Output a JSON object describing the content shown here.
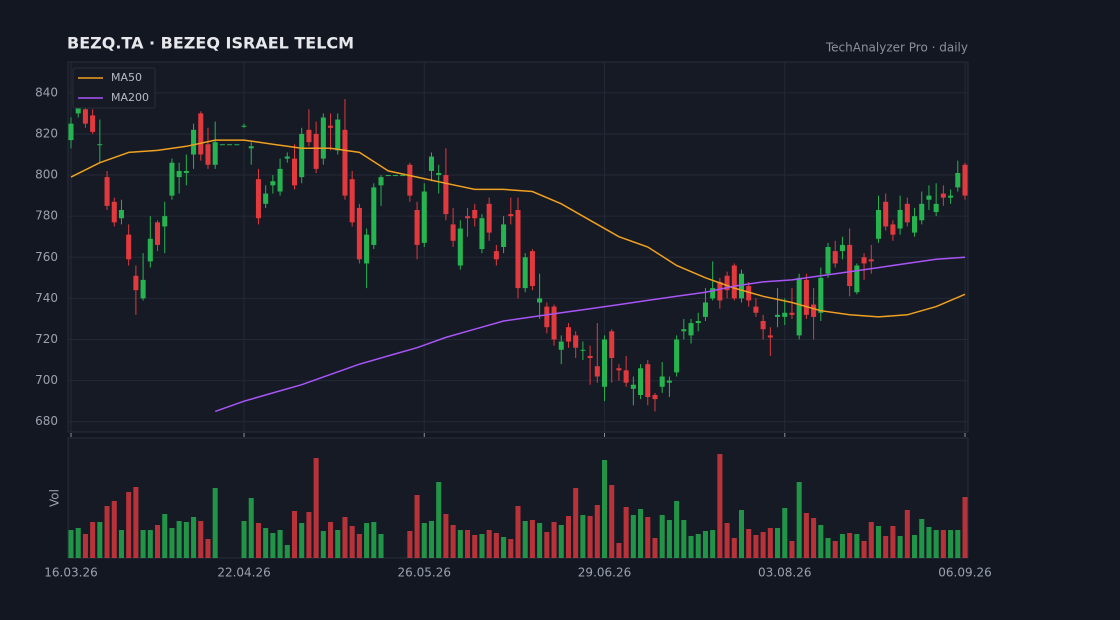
{
  "chart_data": {
    "type": "candlestick",
    "title": "BEZQ.TA · BEZEQ ISRAEL TELCM",
    "subtitle": "TechAnalyzer Pro · daily",
    "categories": [
      "16.03.26",
      null,
      null,
      null,
      null,
      null,
      null,
      null,
      null,
      null,
      null,
      null,
      null,
      null,
      null,
      null,
      null,
      null,
      null,
      null,
      null,
      null,
      null,
      null,
      "22.04.26",
      null,
      null,
      null,
      null,
      null,
      null,
      null,
      null,
      null,
      null,
      null,
      null,
      null,
      null,
      null,
      null,
      null,
      null,
      null,
      null,
      null,
      null,
      null,
      null,
      "26.05.26",
      null,
      null,
      null,
      null,
      null,
      null,
      null,
      null,
      null,
      null,
      null,
      null,
      null,
      null,
      null,
      null,
      null,
      null,
      null,
      null,
      null,
      null,
      null,
      null,
      "29.06.26",
      null,
      null,
      null,
      null,
      null,
      null,
      null,
      null,
      null,
      null,
      null,
      null,
      null,
      null,
      null,
      null,
      null,
      null,
      null,
      null,
      null,
      null,
      null,
      null,
      "03.08.26",
      null,
      null,
      null,
      null,
      null,
      null,
      null,
      null,
      null,
      null,
      null,
      null,
      null,
      null,
      null,
      null,
      null,
      null,
      null,
      null,
      null,
      null,
      null,
      null,
      "06.09.26"
    ],
    "open": [
      817,
      830,
      832,
      829,
      815,
      799,
      787,
      779,
      771,
      751,
      740,
      758,
      777,
      775,
      790,
      799,
      801,
      810,
      830,
      815,
      805,
      815,
      815,
      815,
      824,
      813,
      798,
      786,
      795,
      792,
      808,
      808,
      799,
      822,
      820,
      808,
      824,
      812,
      822,
      798,
      784,
      757,
      766,
      795,
      800,
      800,
      800,
      805,
      783,
      767,
      802,
      800,
      800,
      776,
      756,
      780,
      783,
      764,
      786,
      763,
      765,
      781,
      783,
      745,
      763,
      738,
      736,
      736,
      715,
      726,
      722,
      715,
      712,
      707,
      697,
      724,
      706,
      705,
      696,
      693,
      708,
      693,
      697,
      699,
      704,
      724,
      722,
      728,
      731,
      740,
      748,
      751,
      756,
      740,
      746,
      736,
      729,
      722,
      731,
      731,
      733,
      722,
      749,
      737,
      733,
      752,
      763,
      763,
      766,
      743,
      760,
      759,
      769,
      787,
      776,
      774,
      786,
      772,
      778,
      788,
      782,
      791,
      789,
      794,
      805
    ],
    "high": [
      828,
      845,
      841,
      832,
      827,
      802,
      789,
      788,
      776,
      756,
      762,
      780,
      778,
      787,
      808,
      806,
      810,
      825,
      831,
      823,
      826,
      815,
      815,
      815,
      825,
      816,
      803,
      795,
      800,
      808,
      811,
      815,
      823,
      832,
      826,
      830,
      830,
      830,
      837,
      802,
      786,
      774,
      796,
      800,
      800,
      800,
      800,
      806,
      787,
      796,
      811,
      805,
      813,
      784,
      778,
      784,
      786,
      781,
      789,
      766,
      780,
      789,
      789,
      762,
      764,
      752,
      738,
      737,
      722,
      728,
      724,
      719,
      717,
      728,
      722,
      725,
      708,
      712,
      702,
      708,
      710,
      694,
      709,
      702,
      722,
      730,
      730,
      733,
      745,
      758,
      750,
      753,
      757,
      754,
      748,
      740,
      732,
      726,
      745,
      740,
      745,
      752,
      752,
      745,
      755,
      767,
      768,
      770,
      774,
      757,
      762,
      766,
      790,
      791,
      778,
      790,
      789,
      784,
      792,
      795,
      796,
      795,
      793,
      807,
      806
    ],
    "low": [
      813,
      828,
      823,
      820,
      806,
      783,
      775,
      776,
      756,
      732,
      739,
      755,
      763,
      762,
      788,
      791,
      795,
      803,
      807,
      803,
      803,
      815,
      815,
      815,
      823,
      805,
      776,
      784,
      791,
      790,
      806,
      793,
      796,
      814,
      801,
      805,
      812,
      810,
      788,
      775,
      757,
      745,
      764,
      785,
      800,
      800,
      800,
      787,
      759,
      765,
      797,
      791,
      778,
      765,
      754,
      770,
      775,
      762,
      768,
      756,
      762,
      776,
      740,
      743,
      744,
      730,
      723,
      717,
      708,
      716,
      711,
      710,
      698,
      699,
      690,
      699,
      700,
      697,
      688,
      691,
      688,
      685,
      694,
      692,
      702,
      720,
      718,
      724,
      729,
      739,
      735,
      740,
      739,
      738,
      736,
      731,
      720,
      712,
      726,
      727,
      730,
      720,
      730,
      720,
      729,
      750,
      755,
      759,
      741,
      742,
      749,
      752,
      767,
      773,
      768,
      771,
      775,
      770,
      776,
      783,
      780,
      785,
      786,
      792,
      788
    ],
    "close": [
      825,
      840,
      825,
      821,
      815,
      785,
      777,
      783,
      759,
      744,
      749,
      769,
      766,
      780,
      806,
      802,
      802,
      822,
      810,
      805,
      816,
      815,
      815,
      815,
      824,
      814,
      779,
      791,
      797,
      803,
      809,
      795,
      820,
      816,
      803,
      828,
      823,
      827,
      790,
      777,
      759,
      771,
      794,
      799,
      800,
      800,
      800,
      790,
      766,
      792,
      809,
      801,
      781,
      768,
      774,
      779,
      779,
      779,
      772,
      759,
      776,
      780,
      745,
      760,
      746,
      740,
      726,
      720,
      719,
      719,
      716,
      715,
      711,
      702,
      720,
      711,
      705,
      699,
      698,
      706,
      692,
      691,
      702,
      700,
      720,
      725,
      728,
      729,
      738,
      745,
      739,
      744,
      740,
      752,
      739,
      733,
      725,
      721,
      732,
      733,
      732,
      750,
      732,
      731,
      750,
      765,
      757,
      766,
      746,
      756,
      757,
      758,
      783,
      775,
      771,
      783,
      777,
      780,
      786,
      790,
      786,
      789,
      790,
      801,
      790
    ],
    "volume": [
      28,
      30,
      24,
      36,
      36,
      52,
      57,
      28,
      66,
      71,
      28,
      28,
      33,
      44,
      30,
      37,
      36,
      41,
      37,
      19,
      70,
      0,
      0,
      0,
      37,
      60,
      35,
      30,
      25,
      28,
      13,
      47,
      35,
      46,
      100,
      27,
      36,
      28,
      41,
      32,
      24,
      35,
      36,
      24,
      0,
      0,
      0,
      27,
      63,
      35,
      37,
      76,
      44,
      33,
      28,
      28,
      23,
      24,
      28,
      25,
      21,
      19,
      52,
      37,
      38,
      35,
      26,
      36,
      33,
      42,
      70,
      43,
      42,
      53,
      98,
      73,
      15,
      51,
      43,
      49,
      41,
      20,
      43,
      38,
      57,
      38,
      22,
      24,
      27,
      28,
      104,
      35,
      20,
      48,
      29,
      23,
      26,
      30,
      30,
      50,
      17,
      76,
      45,
      40,
      33,
      20,
      17,
      24,
      25,
      24,
      17,
      36,
      32,
      22,
      32,
      22,
      48,
      23,
      39,
      31,
      28,
      28,
      28,
      28,
      61
    ],
    "up_color": "#26b350",
    "down_color": "#e0393e",
    "ylim": [
      675,
      855
    ],
    "yticks": [
      680,
      700,
      720,
      740,
      760,
      780,
      800,
      820,
      840
    ],
    "volume_label": "Vol",
    "vlim": [
      0,
      120
    ],
    "grid": true,
    "legend": "upper left",
    "series": [
      {
        "name": "MA50",
        "color": "#f0a020",
        "x": [
          0,
          4,
          8,
          12,
          16,
          20,
          24,
          28,
          32,
          36,
          40,
          44,
          48,
          52,
          56,
          60,
          64,
          68,
          72,
          76,
          80,
          84,
          88,
          92,
          96,
          100,
          104,
          108,
          112,
          116,
          120,
          124
        ],
        "values": [
          799,
          806,
          811,
          812,
          814,
          817,
          817,
          815,
          813,
          813,
          811,
          802,
          799,
          796,
          793,
          793,
          792,
          786,
          778,
          770,
          765,
          756,
          750,
          745,
          741,
          738,
          734,
          732,
          731,
          732,
          736,
          742
        ]
      },
      {
        "name": "MA200",
        "color": "#a855f7",
        "x": [
          20,
          24,
          28,
          32,
          36,
          40,
          44,
          48,
          52,
          56,
          60,
          64,
          68,
          72,
          76,
          80,
          84,
          88,
          92,
          96,
          100,
          104,
          108,
          112,
          116,
          120,
          124
        ],
        "values": [
          685,
          690,
          694,
          698,
          703,
          708,
          712,
          716,
          721,
          725,
          729,
          731,
          733,
          735,
          737,
          739,
          741,
          743,
          746,
          748,
          749,
          751,
          753,
          755,
          757,
          759,
          760
        ]
      }
    ]
  }
}
